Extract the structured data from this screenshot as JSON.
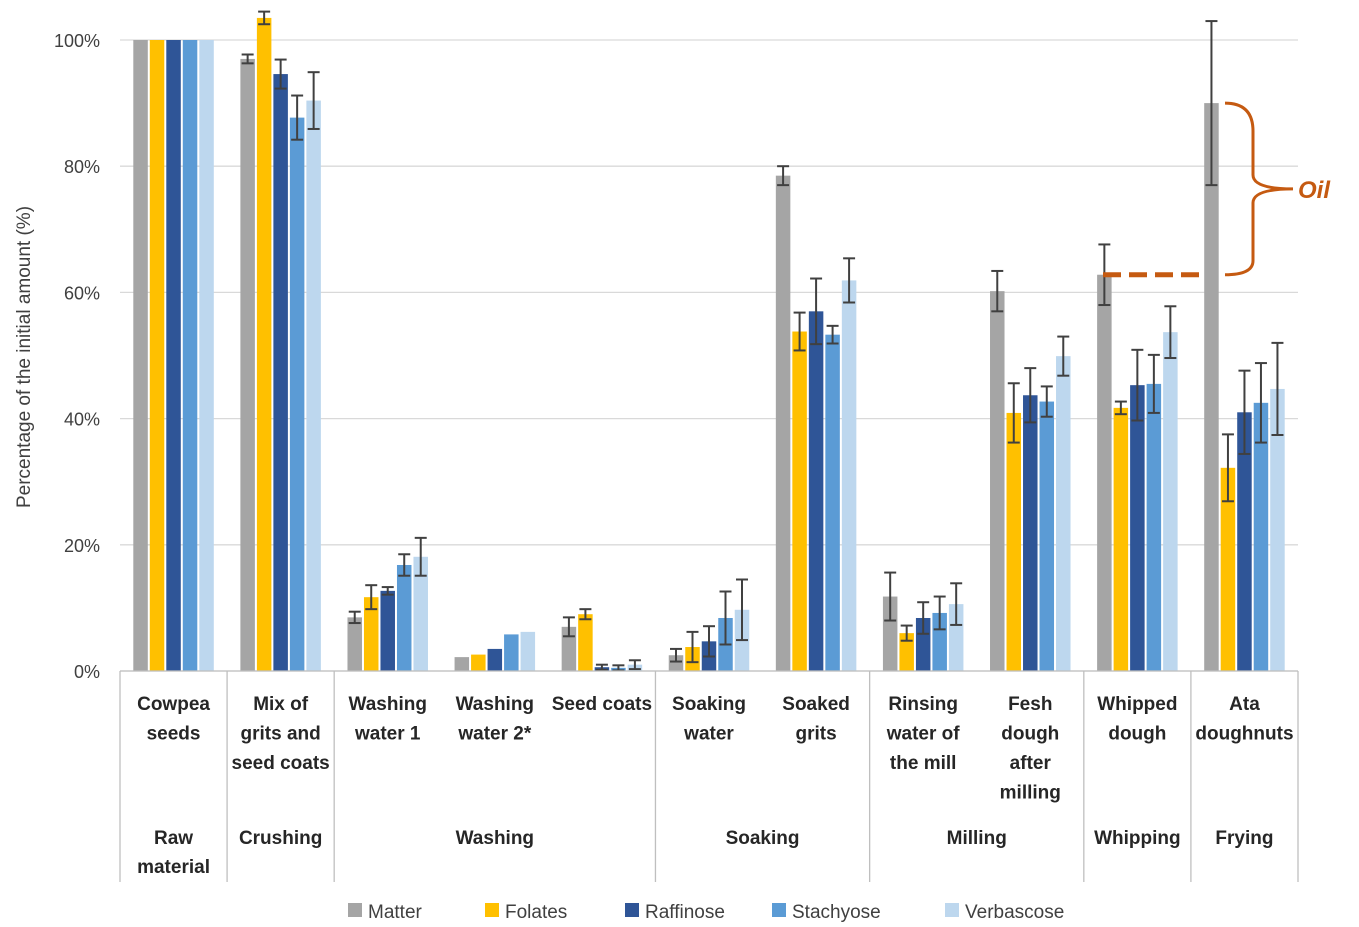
{
  "chart_data": {
    "type": "bar",
    "ylabel": "Percentage of the initial amount (%)",
    "ylim": [
      0,
      100
    ],
    "yticks": [
      "0%",
      "20%",
      "40%",
      "60%",
      "80%",
      "100%"
    ],
    "grid": true,
    "legend_position": "bottom",
    "categories": [
      [
        "Cowpea",
        "seeds"
      ],
      [
        "Mix of",
        "grits and",
        "seed coats"
      ],
      [
        "Washing",
        "water 1"
      ],
      [
        "Washing",
        "water 2*"
      ],
      [
        "Seed coats"
      ],
      [
        "Soaking",
        "water"
      ],
      [
        "Soaked",
        "grits"
      ],
      [
        "Rinsing",
        "water of",
        "the mill"
      ],
      [
        "Fesh",
        "dough",
        "after",
        "milling"
      ],
      [
        "Whipped",
        "dough"
      ],
      [
        "Ata",
        "doughnuts"
      ]
    ],
    "groups": [
      {
        "label": [
          "Raw",
          "material"
        ],
        "start": 0,
        "end": 0
      },
      {
        "label": [
          "Crushing"
        ],
        "start": 1,
        "end": 1
      },
      {
        "label": [
          "Washing"
        ],
        "start": 2,
        "end": 4
      },
      {
        "label": [
          "Soaking"
        ],
        "start": 5,
        "end": 6
      },
      {
        "label": [
          "Milling"
        ],
        "start": 7,
        "end": 8
      },
      {
        "label": [
          "Whipping"
        ],
        "start": 9,
        "end": 9
      },
      {
        "label": [
          "Frying"
        ],
        "start": 10,
        "end": 10
      }
    ],
    "series": [
      {
        "name": "Matter",
        "color": "#a5a5a5",
        "values": [
          100,
          97,
          8.5,
          2.2,
          7,
          2.5,
          78.5,
          11.8,
          60.2,
          62.8,
          90
        ],
        "errors": [
          0,
          0.7,
          0.9,
          0,
          1.5,
          1.0,
          1.5,
          3.8,
          3.2,
          4.8,
          13
        ]
      },
      {
        "name": "Folates",
        "color": "#ffc000",
        "values": [
          100,
          103.5,
          11.7,
          2.6,
          9,
          3.8,
          53.8,
          6,
          40.9,
          41.7,
          32.2
        ],
        "errors": [
          0,
          1.0,
          1.9,
          0,
          0.8,
          2.4,
          3.0,
          1.2,
          4.7,
          1.0,
          5.3
        ]
      },
      {
        "name": "Raffinose",
        "color": "#2f5597",
        "values": [
          100,
          94.6,
          12.7,
          3.5,
          0.6,
          4.7,
          57,
          8.4,
          43.7,
          45.3,
          41
        ],
        "errors": [
          0,
          2.3,
          0.6,
          0,
          0.4,
          2.4,
          5.2,
          2.5,
          4.3,
          5.6,
          6.6
        ]
      },
      {
        "name": "Stachyose",
        "color": "#5b9bd5",
        "values": [
          100,
          87.7,
          16.8,
          5.8,
          0.5,
          8.4,
          53.3,
          9.2,
          42.7,
          45.5,
          42.5
        ],
        "errors": [
          0,
          3.5,
          1.7,
          0,
          0.4,
          4.2,
          1.4,
          2.6,
          2.4,
          4.6,
          6.3
        ]
      },
      {
        "name": "Verbascose",
        "color": "#bdd7ee",
        "values": [
          100,
          90.4,
          18.1,
          6.2,
          1,
          9.7,
          61.9,
          10.6,
          49.9,
          53.7,
          44.7
        ],
        "errors": [
          0,
          4.5,
          3.0,
          0,
          0.7,
          4.8,
          3.5,
          3.3,
          3.1,
          4.1,
          7.3
        ]
      }
    ],
    "annotation": {
      "text": "Oil",
      "color": "#c55a11",
      "from": 62.8,
      "to": 90
    }
  }
}
